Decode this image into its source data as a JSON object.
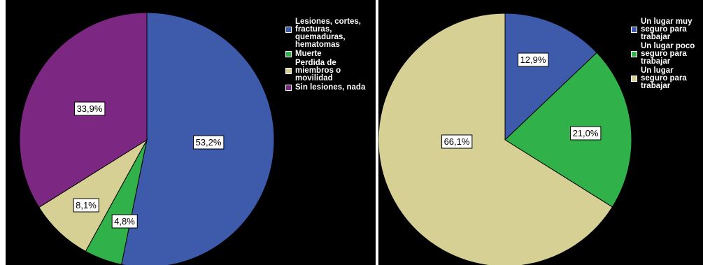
{
  "chart_data": [
    {
      "type": "pie",
      "categories": [
        "Lesiones, cortes, fracturas, quemaduras, hematomas",
        "Muerte",
        "Perdida de miembros o movilidad",
        "Sin lesiones, nada"
      ],
      "legend_labels": [
        "Lesiones, cortes,\nfracturas,\nquemaduras,\nhematomas",
        "Muerte",
        "Perdida de\nmiembros o\nmovilidad",
        "Sin lesiones, nada"
      ],
      "values": [
        53.2,
        4.8,
        8.1,
        33.9
      ],
      "data_labels": [
        "53,2%",
        "4,8%",
        "8,1%",
        "33,9%"
      ],
      "colors": [
        "#3d5aab",
        "#30b14a",
        "#d6d095",
        "#7c2781"
      ],
      "legend_position": "right",
      "start_angle": "12 o'clock",
      "direction": "clockwise"
    },
    {
      "type": "pie",
      "categories": [
        "Un lugar muy seguro para trabajar",
        "Un lugar poco seguro para trabajar",
        "Un lugar seguro para trabajar"
      ],
      "legend_labels": [
        "Un lugar muy\nseguro para\ntrabajar",
        "Un lugar poco\nseguro para\ntrabajar",
        "Un lugar\nseguro para\ntrabajar"
      ],
      "values": [
        12.9,
        21.0,
        66.1
      ],
      "data_labels": [
        "12,9%",
        "21,0%",
        "66,1%"
      ],
      "colors": [
        "#3d5aab",
        "#30b14a",
        "#d6d095"
      ],
      "legend_position": "right",
      "start_angle": "12 o'clock",
      "direction": "clockwise"
    }
  ]
}
